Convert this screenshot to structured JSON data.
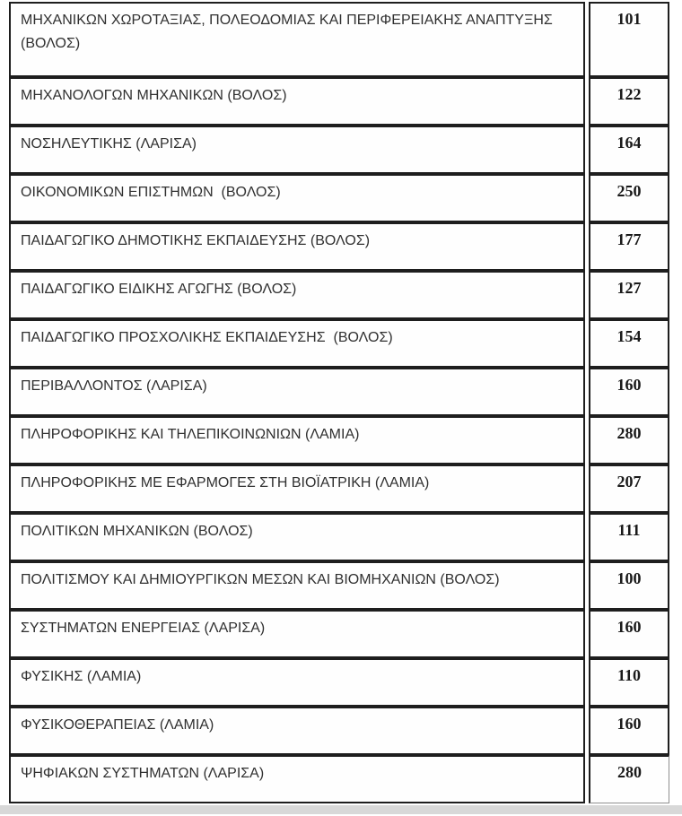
{
  "page": {
    "background": "#ffffff",
    "footer_strip_color": "#d8d8d8"
  },
  "table": {
    "border_color": "#1e1e1e",
    "name_text_color": "#303030",
    "value_text_color": "#1a1a1a",
    "rows": [
      {
        "name": "ΜΗΧΑΝΙΚΩΝ ΧΩΡΟΤΑΞΙΑΣ, ΠΟΛΕΟΔΟΜΙΑΣ ΚΑΙ ΠΕΡΙΦΕΡΕΙΑΚΗΣ ΑΝΑΠΤΥΞΗΣ (ΒΟΛΟΣ)",
        "value": "101"
      },
      {
        "name": "ΜΗΧΑΝΟΛΟΓΩΝ ΜΗΧΑΝΙΚΩΝ (ΒΟΛΟΣ)",
        "value": "122"
      },
      {
        "name": "ΝΟΣΗΛΕΥΤΙΚΗΣ (ΛΑΡΙΣΑ)",
        "value": "164"
      },
      {
        "name": "ΟΙΚΟΝΟΜΙΚΩΝ ΕΠΙΣΤΗΜΩΝ  (ΒΟΛΟΣ)",
        "value": "250"
      },
      {
        "name": "ΠΑΙΔΑΓΩΓΙΚΟ ΔΗΜΟΤΙΚΗΣ ΕΚΠΑΙΔΕΥΣΗΣ (ΒΟΛΟΣ)",
        "value": "177"
      },
      {
        "name": "ΠΑΙΔΑΓΩΓΙΚΟ ΕΙΔΙΚΗΣ ΑΓΩΓΗΣ (ΒΟΛΟΣ)",
        "value": "127"
      },
      {
        "name": "ΠΑΙΔΑΓΩΓΙΚΟ ΠΡΟΣΧΟΛΙΚΗΣ ΕΚΠΑΙΔΕΥΣΗΣ  (ΒΟΛΟΣ)",
        "value": "154"
      },
      {
        "name": "ΠΕΡΙΒΑΛΛΟΝΤΟΣ (ΛΑΡΙΣΑ)",
        "value": "160"
      },
      {
        "name": "ΠΛΗΡΟΦΟΡΙΚΗΣ ΚΑΙ ΤΗΛΕΠΙΚΟΙΝΩΝΙΩΝ (ΛΑΜΙΑ)",
        "value": "280"
      },
      {
        "name": "ΠΛΗΡΟΦΟΡΙΚΗΣ ΜΕ ΕΦΑΡΜΟΓΕΣ ΣΤΗ ΒΙΟΪΑΤΡΙΚΗ (ΛΑΜΙΑ)",
        "value": "207"
      },
      {
        "name": "ΠΟΛΙΤΙΚΩΝ ΜΗΧΑΝΙΚΩΝ (ΒΟΛΟΣ)",
        "value": "111"
      },
      {
        "name": "ΠΟΛΙΤΙΣΜΟΥ ΚΑΙ ΔΗΜΙΟΥΡΓΙΚΩΝ ΜΕΣΩΝ ΚΑΙ ΒΙΟΜΗΧΑΝΙΩΝ (ΒΟΛΟΣ)",
        "value": "100"
      },
      {
        "name": "ΣΥΣΤΗΜΑΤΩΝ ΕΝΕΡΓΕΙΑΣ (ΛΑΡΙΣΑ)",
        "value": "160"
      },
      {
        "name": "ΦΥΣΙΚΗΣ (ΛΑΜΙΑ)",
        "value": "110"
      },
      {
        "name": "ΦΥΣΙΚΟΘΕΡΑΠΕΙΑΣ (ΛΑΜΙΑ)",
        "value": "160"
      },
      {
        "name": "ΨΗΦΙΑΚΩΝ ΣΥΣΤΗΜΑΤΩΝ (ΛΑΡΙΣΑ)",
        "value": "280"
      }
    ]
  }
}
